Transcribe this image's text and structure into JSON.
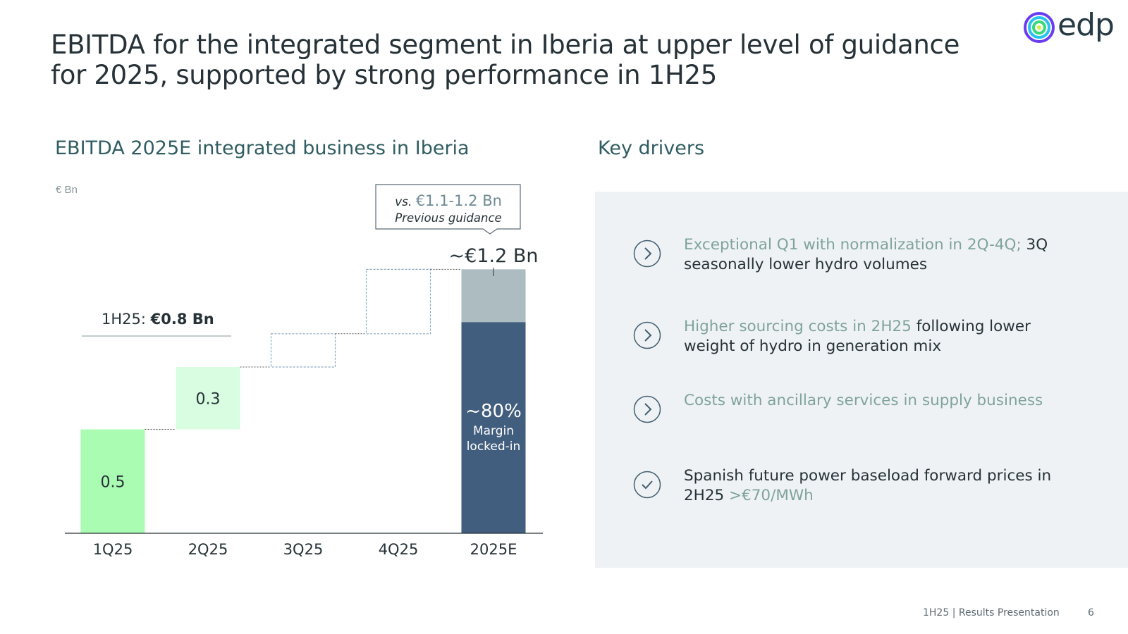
{
  "slide": {
    "title": "EBITDA for the integrated segment in Iberia at upper level of guidance for 2025, supported by strong performance in 1H25",
    "logo_text": "edp"
  },
  "chart_data": {
    "type": "bar",
    "subtype": "waterfall",
    "title": "EBITDA 2025E integrated business in Iberia",
    "unit": "€ Bn",
    "categories": [
      "1Q25",
      "2Q25",
      "3Q25",
      "4Q25",
      "2025E"
    ],
    "increments": [
      0.5,
      0.3,
      0.16,
      0.31,
      null
    ],
    "values": [
      0.5,
      0.3,
      null,
      null,
      1.27
    ],
    "value_labels": [
      "0.5",
      "0.3",
      "",
      "",
      ""
    ],
    "locked_in_fraction": 0.8,
    "projected_style": "dashed-outline",
    "ylim": [
      0,
      1.3
    ],
    "grid": false,
    "colors": {
      "1Q25": "#abfcb3",
      "2Q25": "#d8fde0",
      "projected_outline": "#8aa6c4",
      "total_locked": "#425e7f",
      "total_unlocked": "#adbcc0",
      "connector": "#555555",
      "axis": "#263238"
    },
    "annotations": {
      "h1_label": "1H25: ",
      "h1_value": "€0.8 Bn",
      "total_label": "~€1.2 Bn",
      "locked_pct": "~80%",
      "locked_text_1": "Margin",
      "locked_text_2": "locked-in",
      "callout_vs": "vs.",
      "callout_value": "€1.1-1.2 Bn",
      "callout_sub": "Previous guidance"
    }
  },
  "drivers": {
    "title": "Key drivers",
    "items": [
      {
        "icon": "chevron-right-circle-icon",
        "highlight": "Exceptional Q1 with normalization in 2Q-4Q;",
        "text": " 3Q seasonally lower hydro volumes",
        "order": "highlight-first"
      },
      {
        "icon": "chevron-right-circle-icon",
        "highlight": "Higher sourcing costs in 2H25",
        "text": " following lower weight of hydro in generation mix",
        "order": "highlight-first"
      },
      {
        "icon": "chevron-right-circle-icon",
        "highlight": "Costs with ancillary services in supply business",
        "text": "",
        "order": "highlight-first"
      },
      {
        "icon": "check-circle-icon",
        "highlight": ">€70/MWh",
        "text": "Spanish future power baseload forward prices in 2H25 ",
        "order": "text-first"
      }
    ]
  },
  "footer": {
    "label": "1H25 | Results Presentation",
    "page": "6"
  }
}
